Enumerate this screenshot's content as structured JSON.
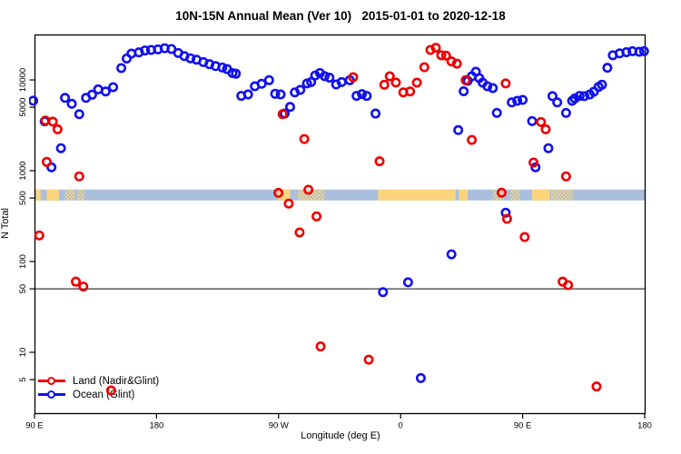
{
  "title": "10N-15N Annual Mean (Ver 10)   2015-01-01 to 2020-12-18",
  "chart_data": {
    "type": "scatter",
    "title": "10N-15N Annual Mean (Ver 10)   2015-01-01 to 2020-12-18",
    "xlabel": "Longitude (deg E)",
    "ylabel": "N Total",
    "x_axis": {
      "range_deg": [
        90,
        540
      ],
      "ticks_deg": [
        90,
        180,
        270,
        360,
        450,
        540
      ],
      "tick_labels": [
        "90 E",
        "180",
        "90 W",
        "0",
        "90 E",
        "180"
      ]
    },
    "y_axis": {
      "scale": "log10",
      "ticks": [
        5,
        10,
        50,
        100,
        500,
        1000,
        5000,
        10000
      ],
      "approx_range": [
        2.2,
        31000
      ]
    },
    "reference_line_value": 50,
    "map_band": {
      "value_range": [
        470,
        620
      ],
      "ocean_color": "#a9bfdd",
      "land_color": "#fbd47c",
      "land_segments_deg": [
        [
          91,
          94.5
        ],
        [
          99,
          108
        ],
        [
          269.5,
          278.5
        ],
        [
          343.5,
          400.5
        ],
        [
          403,
          409.5
        ],
        [
          457,
          470
        ]
      ],
      "land_speckle_segments_deg": [
        [
          112.5,
          120
        ],
        [
          121.5,
          127
        ],
        [
          284,
          304
        ],
        [
          428,
          436
        ],
        [
          441,
          448
        ],
        [
          471,
          487
        ]
      ]
    },
    "legend_position": "bottom-left",
    "series": [
      {
        "name": "Ocean (Glint)",
        "color": "#1111ee",
        "points": [
          [
            89,
            5900
          ],
          [
            97.5,
            3500
          ],
          [
            102.5,
            1090
          ],
          [
            109.5,
            1770
          ],
          [
            112.5,
            6340
          ],
          [
            117.5,
            5460
          ],
          [
            123,
            4190
          ],
          [
            128,
            6340
          ],
          [
            132.5,
            6870
          ],
          [
            137,
            7870
          ],
          [
            142.5,
            7460
          ],
          [
            148,
            8320
          ],
          [
            154,
            13500
          ],
          [
            158,
            17200
          ],
          [
            161.5,
            19500
          ],
          [
            167,
            20100
          ],
          [
            171.5,
            21100
          ],
          [
            176,
            21400
          ],
          [
            181,
            21700
          ],
          [
            186,
            22300
          ],
          [
            191,
            21900
          ],
          [
            196,
            19800
          ],
          [
            200.5,
            18300
          ],
          [
            205,
            17300
          ],
          [
            209.5,
            16700
          ],
          [
            214.5,
            15700
          ],
          [
            219,
            14900
          ],
          [
            223.5,
            14200
          ],
          [
            228.5,
            13700
          ],
          [
            232,
            13200
          ],
          [
            236,
            11900
          ],
          [
            238.5,
            11700
          ],
          [
            242.5,
            6670
          ],
          [
            247.5,
            6920
          ],
          [
            252.5,
            8510
          ],
          [
            257.5,
            9060
          ],
          [
            263,
            9930
          ],
          [
            267.5,
            7030
          ],
          [
            271.5,
            6920
          ],
          [
            274.5,
            4260
          ],
          [
            278.5,
            5040
          ],
          [
            282,
            7290
          ],
          [
            286,
            7760
          ],
          [
            291,
            9150
          ],
          [
            294,
            9460
          ],
          [
            297,
            11200
          ],
          [
            300.5,
            11900
          ],
          [
            304,
            11000
          ],
          [
            307.5,
            10600
          ],
          [
            312.5,
            8910
          ],
          [
            316.5,
            9460
          ],
          [
            322.5,
            9930
          ],
          [
            327.5,
            6670
          ],
          [
            331.5,
            6980
          ],
          [
            335,
            6670
          ],
          [
            341.5,
            4260
          ],
          [
            347,
            46
          ],
          [
            365.5,
            59
          ],
          [
            374.9,
            5.2
          ],
          [
            397.5,
            120
          ],
          [
            402.5,
            2800
          ],
          [
            406.5,
            7500
          ],
          [
            409.5,
            9770
          ],
          [
            412.5,
            10960
          ],
          [
            415.5,
            12300
          ],
          [
            418,
            10480
          ],
          [
            420.5,
            9330
          ],
          [
            424,
            8510
          ],
          [
            428,
            8130
          ],
          [
            431,
            4330
          ],
          [
            437.5,
            345
          ],
          [
            442,
            5650
          ],
          [
            446,
            5890
          ],
          [
            450,
            6030
          ],
          [
            457,
            3520
          ],
          [
            459.5,
            1090
          ],
          [
            469,
            1770
          ],
          [
            472,
            6620
          ],
          [
            475.5,
            5650
          ],
          [
            482,
            4330
          ],
          [
            486.5,
            5890
          ],
          [
            488.5,
            6260
          ],
          [
            492,
            6670
          ],
          [
            495.5,
            6620
          ],
          [
            499.5,
            6920
          ],
          [
            502.5,
            7410
          ],
          [
            506,
            8380
          ],
          [
            508.5,
            8850
          ],
          [
            512.5,
            13600
          ],
          [
            516.5,
            18700
          ],
          [
            521.5,
            19600
          ],
          [
            526.5,
            20200
          ],
          [
            531,
            20700
          ],
          [
            536,
            20400
          ],
          [
            539.5,
            20700
          ]
        ]
      },
      {
        "name": "Land (Nadir&Glint)",
        "color": "#ee0000",
        "points": [
          [
            93.5,
            194
          ],
          [
            98,
            3570
          ],
          [
            99,
            1250
          ],
          [
            103.5,
            3470
          ],
          [
            107,
            2860
          ],
          [
            120.5,
            60
          ],
          [
            123,
            865
          ],
          [
            126,
            53
          ],
          [
            146.5,
            3.8
          ],
          [
            269.9,
            570
          ],
          [
            273,
            4200
          ],
          [
            277.5,
            434
          ],
          [
            285.5,
            209
          ],
          [
            289,
            2230
          ],
          [
            292,
            617
          ],
          [
            298,
            314
          ],
          [
            301,
            11.6
          ],
          [
            325,
            10700
          ],
          [
            336.5,
            8.3
          ],
          [
            344.5,
            1270
          ],
          [
            348,
            8850
          ],
          [
            352,
            10960
          ],
          [
            356.5,
            9360
          ],
          [
            362,
            7290
          ],
          [
            367,
            7460
          ],
          [
            372,
            9330
          ],
          [
            377.5,
            13800
          ],
          [
            382,
            21400
          ],
          [
            386,
            22600
          ],
          [
            390,
            18700
          ],
          [
            393.5,
            18500
          ],
          [
            397.5,
            16000
          ],
          [
            401.5,
            15100
          ],
          [
            408,
            9930
          ],
          [
            412.5,
            2180
          ],
          [
            434.5,
            572
          ],
          [
            437.5,
            9150
          ],
          [
            438.5,
            295
          ],
          [
            451.5,
            186
          ],
          [
            458,
            1230
          ],
          [
            463.5,
            3440
          ],
          [
            467,
            2860
          ],
          [
            479.5,
            60
          ],
          [
            482,
            865
          ],
          [
            483.5,
            55
          ],
          [
            504.5,
            4.2
          ]
        ]
      }
    ]
  },
  "legend": {
    "land_label": "Land (Nadir&Glint)",
    "ocean_label": "Ocean (Glint)"
  }
}
